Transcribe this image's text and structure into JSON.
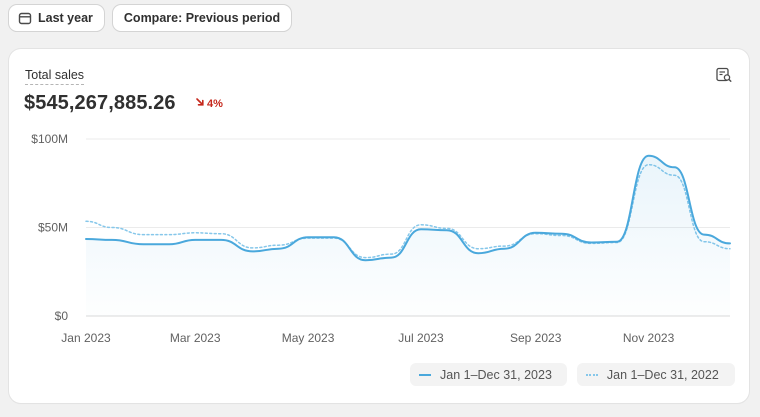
{
  "toolbar": {
    "date_range_label": "Last year",
    "compare_label": "Compare: Previous period"
  },
  "card": {
    "title": "Total sales",
    "value": "$545,267,885.26",
    "change": "4%",
    "change_direction": "down",
    "colors": {
      "primary": "#4aa8dc",
      "comparison": "#86c7ea",
      "negative": "#c5281c"
    }
  },
  "legend": {
    "current": "Jan 1–Dec 31, 2023",
    "previous": "Jan 1–Dec 31, 2022"
  },
  "chart_data": {
    "type": "area",
    "title": "",
    "xlabel": "",
    "ylabel": "",
    "ylim": [
      0,
      100
    ],
    "y_ticks": [
      "$0",
      "$50M",
      "$100M"
    ],
    "x_tick_labels": [
      "Jan 2023",
      "Mar 2023",
      "May 2023",
      "Jul 2023",
      "Sep 2023",
      "Nov 2023"
    ],
    "grid": true,
    "legend_position": "bottom-right",
    "unit": "M USD",
    "series": [
      {
        "name": "Jan 1–Dec 31, 2023",
        "style": "solid",
        "fill": true,
        "points": [
          [
            "2023-01-01",
            43.5
          ],
          [
            "2023-01-15",
            43
          ],
          [
            "2023-02-01",
            40.5
          ],
          [
            "2023-02-15",
            40.5
          ],
          [
            "2023-03-01",
            43
          ],
          [
            "2023-03-15",
            43
          ],
          [
            "2023-04-01",
            36.5
          ],
          [
            "2023-04-15",
            38
          ],
          [
            "2023-05-01",
            44.5
          ],
          [
            "2023-05-15",
            44.5
          ],
          [
            "2023-06-01",
            31.5
          ],
          [
            "2023-06-15",
            33
          ],
          [
            "2023-07-01",
            49
          ],
          [
            "2023-07-15",
            48.5
          ],
          [
            "2023-08-01",
            35.5
          ],
          [
            "2023-08-15",
            38
          ],
          [
            "2023-09-01",
            47
          ],
          [
            "2023-09-15",
            46.5
          ],
          [
            "2023-10-01",
            41.5
          ],
          [
            "2023-10-15",
            42
          ],
          [
            "2023-11-01",
            90.5
          ],
          [
            "2023-11-15",
            84
          ],
          [
            "2023-12-01",
            46
          ],
          [
            "2023-12-15",
            41
          ]
        ]
      },
      {
        "name": "Jan 1–Dec 31, 2022",
        "style": "dotted",
        "fill": false,
        "points": [
          [
            "2023-01-01",
            53.5
          ],
          [
            "2023-01-15",
            50
          ],
          [
            "2023-02-01",
            46
          ],
          [
            "2023-02-15",
            46
          ],
          [
            "2023-03-01",
            47
          ],
          [
            "2023-03-15",
            46.5
          ],
          [
            "2023-04-01",
            38.5
          ],
          [
            "2023-04-15",
            40
          ],
          [
            "2023-05-01",
            44
          ],
          [
            "2023-05-15",
            44
          ],
          [
            "2023-06-01",
            33
          ],
          [
            "2023-06-15",
            35
          ],
          [
            "2023-07-01",
            51.5
          ],
          [
            "2023-07-15",
            49.5
          ],
          [
            "2023-08-01",
            38
          ],
          [
            "2023-08-15",
            39.5
          ],
          [
            "2023-09-01",
            46.5
          ],
          [
            "2023-09-15",
            45.5
          ],
          [
            "2023-10-01",
            41
          ],
          [
            "2023-10-15",
            41.5
          ],
          [
            "2023-11-01",
            85.5
          ],
          [
            "2023-11-15",
            79.5
          ],
          [
            "2023-12-01",
            42
          ],
          [
            "2023-12-15",
            38
          ]
        ]
      }
    ]
  }
}
